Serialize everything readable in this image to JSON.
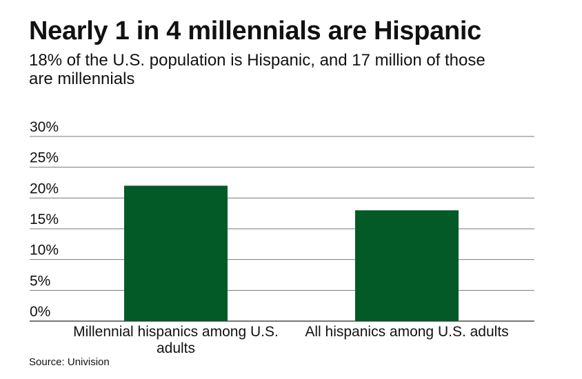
{
  "title": "Nearly 1 in 4 millennials are Hispanic",
  "subtitle": "18% of the U.S. population is Hispanic, and 17 million of those are millennials",
  "source": "Source: Univision",
  "chart_data": {
    "type": "bar",
    "title": "Nearly 1 in 4 millennials are Hispanic",
    "categories": [
      "Millennial hispanics among U.S. adults",
      "All hispanics among U.S. adults"
    ],
    "values": [
      22,
      18
    ],
    "ylim": [
      0,
      30
    ],
    "yticks": [
      0,
      5,
      10,
      15,
      20,
      25,
      30
    ],
    "ytick_labels": [
      "0%",
      "5%",
      "10%",
      "15%",
      "20%",
      "25%",
      "30%"
    ],
    "grid": true,
    "bar_color": "#045a27",
    "xlabel": "",
    "ylabel": ""
  }
}
